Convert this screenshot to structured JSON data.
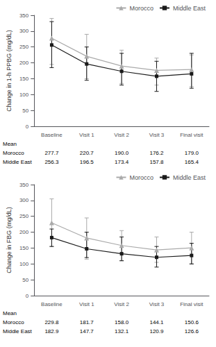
{
  "chart_data": [
    {
      "type": "line",
      "ylabel": "Change in 1-h PPBG (mg/dL)",
      "categories": [
        "Baseline",
        "Visit 1",
        "Visit 2",
        "Visit 3",
        "Final visit"
      ],
      "series": [
        {
          "name": "Morocco",
          "color": "#aaaaaa",
          "marker": "triangle",
          "values": [
            277.7,
            220.7,
            190.0,
            176.2,
            179.0
          ],
          "upper": [
            340,
            290,
            240,
            215,
            225
          ],
          "lower": [
            195,
            150,
            135,
            130,
            125
          ]
        },
        {
          "name": "Middle East",
          "color": "#1a1a1a",
          "marker": "square",
          "values": [
            256.3,
            196.5,
            173.4,
            157.8,
            165.4
          ],
          "upper": [
            330,
            250,
            230,
            205,
            230
          ],
          "lower": [
            185,
            145,
            130,
            110,
            120
          ]
        }
      ],
      "ylim": [
        0,
        350
      ],
      "yticks": [
        0,
        50,
        100,
        150,
        200,
        250,
        300,
        350
      ],
      "legend": "upper right",
      "grid": false,
      "table": {
        "header": "Mean",
        "rows": [
          {
            "label": "Morocco",
            "cells": [
              "277.7",
              "220.7",
              "190.0",
              "176.2",
              "179.0"
            ]
          },
          {
            "label": "Middle East",
            "cells": [
              "256.3",
              "196.5",
              "173.4",
              "157.8",
              "165.4"
            ]
          }
        ]
      }
    },
    {
      "type": "line",
      "ylabel": "Change in FBG (mg/dL)",
      "categories": [
        "Baseline",
        "Visit 1",
        "Visit 2",
        "Visit 3",
        "Final visit"
      ],
      "series": [
        {
          "name": "Morocco",
          "color": "#aaaaaa",
          "marker": "triangle",
          "values": [
            229.8,
            181.7,
            158.0,
            144.1,
            150.6
          ],
          "upper": [
            305,
            245,
            205,
            185,
            200
          ],
          "lower": [
            155,
            115,
            110,
            105,
            100
          ]
        },
        {
          "name": "Middle East",
          "color": "#1a1a1a",
          "marker": "square",
          "values": [
            182.9,
            147.7,
            132.1,
            120.9,
            126.6
          ],
          "upper": [
            210,
            200,
            185,
            155,
            165
          ],
          "lower": [
            155,
            120,
            110,
            90,
            100
          ]
        }
      ],
      "ylim": [
        0,
        350
      ],
      "yticks": [
        0,
        50,
        100,
        150,
        200,
        250,
        300,
        350
      ],
      "legend": "upper right",
      "grid": false,
      "table": {
        "header": "Mean",
        "rows": [
          {
            "label": "Morocco",
            "cells": [
              "229.8",
              "181.7",
              "158.0",
              "144.1",
              "150.6"
            ]
          },
          {
            "label": "Middle East",
            "cells": [
              "182.9",
              "147.7",
              "132.1",
              "120.9",
              "126.6"
            ]
          }
        ]
      }
    }
  ]
}
